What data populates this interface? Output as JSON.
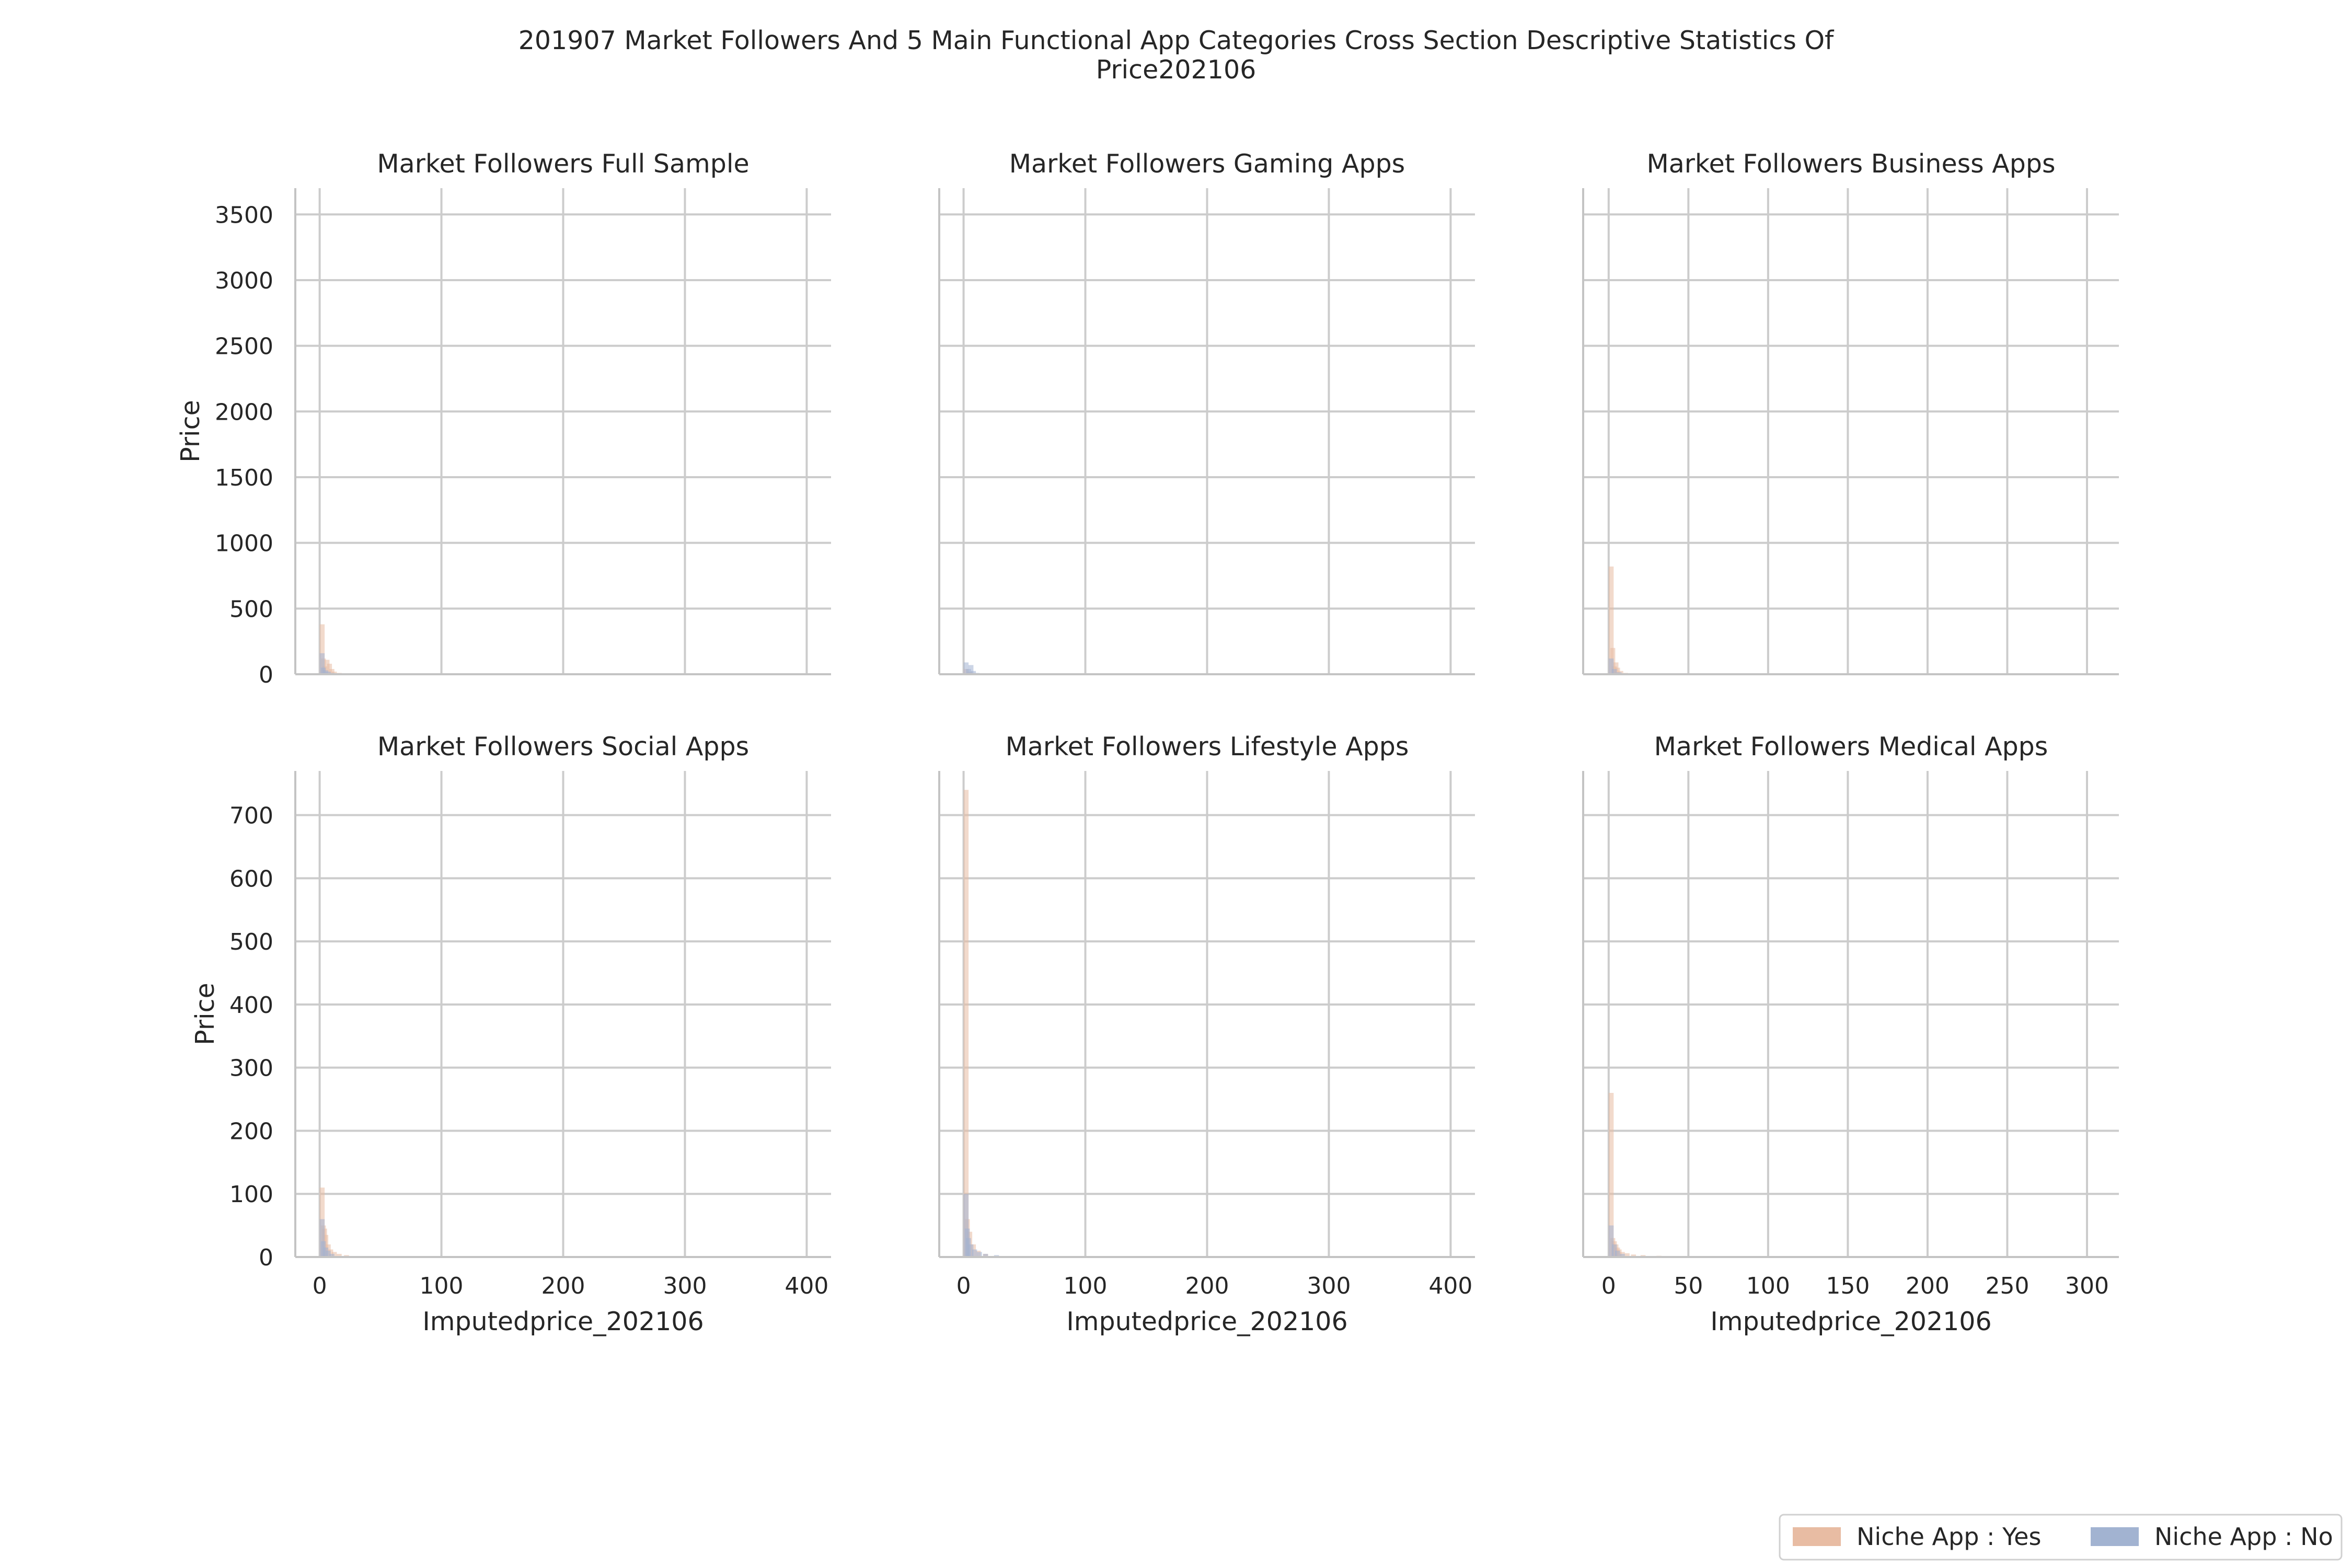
{
  "title": "201907 Market Followers And 5 Main Functional App Categories Cross Section Descriptive Statistics Of Price202106",
  "legend": {
    "position": "bottom-right",
    "items": [
      {
        "label": "Niche App : Yes",
        "color": "#e8bca3"
      },
      {
        "label": "Niche App : No",
        "color": "#a2b3d1"
      }
    ]
  },
  "chart_data": [
    {
      "type": "histogram",
      "title": "Market Followers Full Sample",
      "xlabel": "",
      "ylabel": "Price",
      "xlim": [
        -20,
        420
      ],
      "ylim": [
        0,
        3700
      ],
      "xticks": [
        0,
        100,
        200,
        300,
        400
      ],
      "yticks": [
        0,
        500,
        1000,
        1500,
        2000,
        2500,
        3000,
        3500
      ],
      "show_xticklabels": false,
      "show_yticklabels": true,
      "grid": true,
      "series": [
        {
          "name": "Niche App : Yes",
          "bins": [
            [
              0,
              380
            ],
            [
              1,
              120
            ],
            [
              2,
              60
            ],
            [
              4,
              110
            ],
            [
              6,
              80
            ],
            [
              8,
              40
            ],
            [
              10,
              20
            ],
            [
              14,
              10
            ],
            [
              20,
              5
            ]
          ]
        },
        {
          "name": "Niche App : No",
          "bins": [
            [
              0,
              160
            ],
            [
              1,
              50
            ],
            [
              3,
              30
            ],
            [
              5,
              20
            ],
            [
              8,
              10
            ],
            [
              12,
              5
            ]
          ]
        }
      ]
    },
    {
      "type": "histogram",
      "title": "Market Followers Gaming Apps",
      "xlabel": "",
      "ylabel": "",
      "xlim": [
        -20,
        420
      ],
      "ylim": [
        0,
        3700
      ],
      "xticks": [
        0,
        100,
        200,
        300,
        400
      ],
      "yticks": [
        0,
        500,
        1000,
        1500,
        2000,
        2500,
        3000,
        3500
      ],
      "show_xticklabels": false,
      "show_yticklabels": false,
      "grid": true,
      "series": [
        {
          "name": "Niche App : Yes",
          "bins": [
            [
              0,
              40
            ],
            [
              3,
              20
            ],
            [
              5,
              10
            ]
          ]
        },
        {
          "name": "Niche App : No",
          "bins": [
            [
              0,
              90
            ],
            [
              2,
              40
            ],
            [
              4,
              70
            ],
            [
              6,
              25
            ],
            [
              9,
              10
            ],
            [
              13,
              5
            ]
          ]
        }
      ]
    },
    {
      "type": "histogram",
      "title": "Market Followers Business Apps",
      "xlabel": "",
      "ylabel": "",
      "xlim": [
        -16,
        320
      ],
      "ylim": [
        0,
        3700
      ],
      "xticks": [
        0,
        50,
        100,
        150,
        200,
        250,
        300
      ],
      "yticks": [
        0,
        500,
        1000,
        1500,
        2000,
        2500,
        3000,
        3500
      ],
      "show_xticklabels": false,
      "show_yticklabels": false,
      "grid": true,
      "series": [
        {
          "name": "Niche App : Yes",
          "bins": [
            [
              0,
              820
            ],
            [
              1,
              200
            ],
            [
              2,
              60
            ],
            [
              3,
              90
            ],
            [
              4,
              50
            ],
            [
              6,
              25
            ],
            [
              9,
              10
            ],
            [
              14,
              5
            ]
          ]
        },
        {
          "name": "Niche App : No",
          "bins": [
            [
              0,
              120
            ],
            [
              2,
              40
            ],
            [
              5,
              15
            ],
            [
              9,
              5
            ]
          ]
        }
      ]
    },
    {
      "type": "histogram",
      "title": "Market Followers Social Apps",
      "xlabel": "Imputedprice_202106",
      "ylabel": "Price",
      "xlim": [
        -20,
        420
      ],
      "ylim": [
        0,
        770
      ],
      "xticks": [
        0,
        100,
        200,
        300,
        400
      ],
      "yticks": [
        0,
        100,
        200,
        300,
        400,
        500,
        600,
        700
      ],
      "show_xticklabels": true,
      "show_yticklabels": true,
      "grid": true,
      "series": [
        {
          "name": "Niche App : Yes",
          "bins": [
            [
              0,
              110
            ],
            [
              1,
              50
            ],
            [
              2,
              45
            ],
            [
              3,
              35
            ],
            [
              5,
              20
            ],
            [
              7,
              12
            ],
            [
              10,
              8
            ],
            [
              14,
              5
            ],
            [
              20,
              3
            ]
          ]
        },
        {
          "name": "Niche App : No",
          "bins": [
            [
              0,
              60
            ],
            [
              1,
              25
            ],
            [
              3,
              15
            ],
            [
              5,
              10
            ],
            [
              8,
              5
            ]
          ]
        }
      ]
    },
    {
      "type": "histogram",
      "title": "Market Followers Lifestyle Apps",
      "xlabel": "Imputedprice_202106",
      "ylabel": "",
      "xlim": [
        -20,
        420
      ],
      "ylim": [
        0,
        770
      ],
      "xticks": [
        0,
        100,
        200,
        300,
        400
      ],
      "yticks": [
        0,
        100,
        200,
        300,
        400,
        500,
        600,
        700
      ],
      "show_xticklabels": true,
      "show_yticklabels": false,
      "grid": true,
      "series": [
        {
          "name": "Niche App : Yes",
          "bins": [
            [
              0,
              740
            ],
            [
              1,
              60
            ],
            [
              3,
              40
            ],
            [
              6,
              20
            ],
            [
              10,
              10
            ],
            [
              16,
              5
            ]
          ]
        },
        {
          "name": "Niche App : No",
          "bins": [
            [
              0,
              100
            ],
            [
              1,
              45
            ],
            [
              2,
              30
            ],
            [
              4,
              20
            ],
            [
              7,
              12
            ],
            [
              11,
              8
            ],
            [
              16,
              5
            ],
            [
              25,
              3
            ]
          ]
        }
      ]
    },
    {
      "type": "histogram",
      "title": "Market Followers Medical Apps",
      "xlabel": "Imputedprice_202106",
      "ylabel": "",
      "xlim": [
        -16,
        320
      ],
      "ylim": [
        0,
        770
      ],
      "xticks": [
        0,
        50,
        100,
        150,
        200,
        250,
        300
      ],
      "yticks": [
        0,
        100,
        200,
        300,
        400,
        500,
        600,
        700
      ],
      "show_xticklabels": true,
      "show_yticklabels": false,
      "grid": true,
      "series": [
        {
          "name": "Niche App : Yes",
          "bins": [
            [
              0,
              260
            ],
            [
              1,
              30
            ],
            [
              2,
              25
            ],
            [
              3,
              20
            ],
            [
              4,
              15
            ],
            [
              5,
              12
            ],
            [
              7,
              8
            ],
            [
              10,
              6
            ],
            [
              14,
              4
            ],
            [
              20,
              3
            ],
            [
              30,
              2
            ]
          ]
        },
        {
          "name": "Niche App : No",
          "bins": [
            [
              0,
              50
            ],
            [
              2,
              20
            ],
            [
              4,
              10
            ],
            [
              7,
              5
            ]
          ]
        }
      ]
    }
  ]
}
